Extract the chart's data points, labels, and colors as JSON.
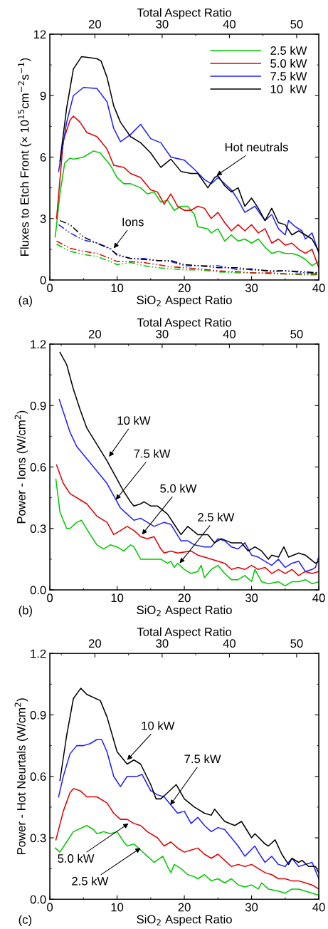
{
  "chart_data": [
    {
      "type": "line",
      "xlabel": "SiO$_{2}$ Aspect Ratio",
      "ylabel": "Fluxes to Etch Front (× 10$^{15}$cm$^{−2}$s$^{−1}$)",
      "x2label": "Total Aspect Ratio",
      "xlim": [
        0,
        40
      ],
      "xticks": [
        0,
        10,
        20,
        30,
        40
      ],
      "ylim": [
        0,
        12
      ],
      "yticks": [
        0,
        3,
        6,
        9,
        12
      ],
      "x2lim": [
        13.3,
        53.3
      ],
      "x2ticks": [
        20,
        30,
        40,
        50
      ],
      "legend": "top right",
      "grid": false,
      "annotations": [
        "(a)",
        {
          "text": "Hot neutrals",
          "x": 24.8,
          "y": 5.1
        },
        {
          "text": "Ions",
          "x": 9.5,
          "y": 1.55
        }
      ],
      "series": [
        {
          "name": "2.5 kW",
          "color": "#00c800",
          "line_style": "solid",
          "x": [
            0.8,
            1.5,
            2.2,
            3,
            3.5,
            5,
            6.5,
            7.5,
            9,
            10,
            11,
            12,
            13.5,
            14.5,
            15.5,
            16.5,
            17.5,
            18.5,
            19.5,
            20.5,
            21.5,
            22,
            23.5,
            24,
            25,
            26,
            27,
            28,
            29,
            30,
            31,
            32,
            33,
            34,
            35,
            36,
            37,
            38,
            39,
            40
          ],
          "values": [
            2.1,
            4.2,
            5.7,
            5.95,
            5.9,
            6.0,
            6.3,
            6.2,
            5.6,
            5.0,
            4.7,
            4.7,
            4.5,
            4.2,
            4.3,
            3.8,
            3.9,
            3.4,
            3.6,
            3.6,
            3.2,
            2.6,
            2.5,
            2.3,
            2.5,
            1.9,
            2.2,
            1.9,
            2.0,
            1.8,
            2.0,
            1.6,
            1.3,
            1.4,
            1.3,
            1.3,
            1.2,
            1.0,
            0.7,
            0.9
          ]
        },
        {
          "name": "5.0 kW",
          "color": "#e00000",
          "line_style": "solid",
          "x": [
            1,
            2,
            3,
            3.5,
            4.5,
            5.5,
            7,
            8.5,
            9.5,
            11,
            12,
            13.5,
            15,
            16,
            17,
            18,
            19,
            20,
            21,
            22,
            23,
            24,
            25,
            26,
            27,
            28,
            29,
            30,
            31,
            32,
            33,
            34,
            35,
            36,
            37,
            38,
            39,
            40
          ],
          "values": [
            3.0,
            6.8,
            7.8,
            8.0,
            7.7,
            7.2,
            7.0,
            6.4,
            5.6,
            5.5,
            5.2,
            5.0,
            4.4,
            4.3,
            3.7,
            4.2,
            3.6,
            3.4,
            3.4,
            3.6,
            3.5,
            3.0,
            3.3,
            2.8,
            2.4,
            2.7,
            2.4,
            2.7,
            2.3,
            2.5,
            1.8,
            2.0,
            1.7,
            1.8,
            1.5,
            1.3,
            1.5,
            0.6
          ]
        },
        {
          "name": "7.5 kW",
          "color": "#1f1fff",
          "line_style": "solid",
          "x": [
            1.3,
            2.5,
            3.5,
            5,
            7,
            8.5,
            9.5,
            10.5,
            12,
            13.5,
            15,
            16.5,
            18,
            20,
            21.5,
            23,
            24,
            25,
            27,
            28,
            29,
            30.5,
            32,
            33,
            34,
            35,
            35.5,
            36.5,
            37.5,
            38,
            39,
            40
          ],
          "values": [
            5.3,
            7.7,
            9.0,
            9.4,
            9.35,
            8.7,
            7.4,
            6.75,
            7.1,
            7.6,
            6.9,
            6.7,
            6.0,
            5.85,
            5.4,
            4.9,
            4.7,
            5.0,
            4.4,
            3.9,
            3.3,
            3.6,
            2.9,
            3.2,
            2.5,
            2.2,
            2.9,
            2.6,
            2.4,
            2.0,
            2.3,
            1.3
          ]
        },
        {
          "name": "10  kW",
          "color": "#000000",
          "line_style": "solid",
          "x": [
            1.5,
            2.5,
            3.5,
            4.7,
            6,
            7,
            7.6,
            8.5,
            9.5,
            10.5,
            12,
            13.5,
            15,
            16.5,
            18,
            19.5,
            21,
            22,
            23.5,
            24.5,
            25,
            26,
            27,
            28,
            29,
            30,
            31,
            32,
            33,
            34,
            35,
            36,
            37,
            38,
            39,
            40
          ],
          "values": [
            5.8,
            8.4,
            10.3,
            10.9,
            10.85,
            10.8,
            10.7,
            9.9,
            8.5,
            7.7,
            7.0,
            6.7,
            6.2,
            5.5,
            5.9,
            5.3,
            5.2,
            5.2,
            4.5,
            5.0,
            5.1,
            4.6,
            4.3,
            4.5,
            3.6,
            4.0,
            3.5,
            2.9,
            3.5,
            2.8,
            2.7,
            2.2,
            2.4,
            2.2,
            2.0,
            1.4
          ]
        },
        {
          "color": "#00c800",
          "line_style": "dashdot",
          "x": [
            1,
            3,
            5,
            7,
            9,
            10,
            12,
            14,
            16,
            18,
            20,
            22,
            25,
            28,
            30,
            33,
            35,
            38,
            40
          ],
          "values": [
            1.75,
            1.4,
            1.25,
            1.15,
            0.9,
            0.75,
            0.85,
            0.7,
            0.6,
            0.55,
            0.5,
            0.5,
            0.4,
            0.35,
            0.35,
            0.3,
            0.3,
            0.25,
            0.25
          ]
        },
        {
          "color": "#e00000",
          "line_style": "dashdot",
          "x": [
            1,
            3,
            5,
            7,
            9,
            10,
            12,
            14,
            16,
            18,
            20,
            22,
            25,
            28,
            30,
            33,
            35,
            38,
            40
          ],
          "values": [
            1.9,
            1.55,
            1.4,
            1.3,
            1.05,
            0.9,
            0.9,
            0.85,
            0.75,
            0.65,
            0.6,
            0.55,
            0.45,
            0.4,
            0.35,
            0.35,
            0.3,
            0.3,
            0.3
          ]
        },
        {
          "color": "#1f1fff",
          "line_style": "dashdot",
          "x": [
            1.3,
            3,
            5,
            7,
            9,
            10,
            12,
            14,
            16,
            18,
            20,
            22,
            25,
            28,
            30,
            33,
            35,
            38,
            40
          ],
          "values": [
            2.7,
            2.3,
            1.95,
            1.8,
            1.55,
            1.2,
            1.05,
            1.05,
            0.95,
            0.9,
            0.7,
            0.7,
            0.7,
            0.5,
            0.55,
            0.4,
            0.45,
            0.35,
            0.35
          ]
        },
        {
          "color": "#000000",
          "line_style": "dashdot",
          "x": [
            1.5,
            3,
            5,
            7,
            9,
            10,
            12,
            14,
            16,
            18,
            20,
            22,
            25,
            28,
            30,
            33,
            35,
            38,
            40
          ],
          "values": [
            2.9,
            2.7,
            2.1,
            1.8,
            1.5,
            1.25,
            1.05,
            1.0,
            0.95,
            0.95,
            0.75,
            0.7,
            0.6,
            0.6,
            0.5,
            0.45,
            0.45,
            0.4,
            0.35
          ]
        }
      ]
    },
    {
      "type": "line",
      "xlabel": "SiO$_{2}$ Aspect Ratio",
      "ylabel": "Power - Ions (W/cm$^{2}$)",
      "x2label": "Total Aspect Ratio",
      "xlim": [
        0,
        40
      ],
      "xticks": [
        0,
        10,
        20,
        30,
        40
      ],
      "ylim": [
        0,
        1.2
      ],
      "yticks": [
        {
          "value": 0,
          "label": "0.0"
        },
        0.3,
        0.6,
        0.9,
        1.2
      ],
      "x2lim": [
        13.3,
        53.3
      ],
      "x2ticks": [
        20,
        30,
        40,
        50
      ],
      "grid": false,
      "annotations": [
        "(b)",
        {
          "text": "10 kW",
          "x": 8.8,
          "y": 0.65
        },
        {
          "text": "7.5 kW",
          "x": 9.8,
          "y": 0.44
        },
        {
          "text": "5.0 kW",
          "x": 13.7,
          "y": 0.27
        },
        {
          "text": "2.5 kW",
          "x": 19.3,
          "y": 0.13
        }
      ],
      "series": [
        {
          "color": "#00c800",
          "x": [
            0.9,
            1.5,
            2.5,
            3,
            4,
            4.7,
            6,
            7,
            8,
            9,
            10,
            11,
            12,
            12.5,
            13.5,
            15,
            16.5,
            17.5,
            18,
            18.5,
            19,
            20,
            21,
            22,
            22.5,
            23,
            24,
            25,
            26,
            27,
            28,
            29,
            30,
            30.5,
            31.5,
            32.5,
            34,
            35,
            36,
            37,
            38,
            39,
            40
          ],
          "values": [
            0.54,
            0.38,
            0.3,
            0.3,
            0.33,
            0.34,
            0.27,
            0.22,
            0.2,
            0.22,
            0.21,
            0.19,
            0.22,
            0.21,
            0.15,
            0.15,
            0.15,
            0.13,
            0.14,
            0.11,
            0.13,
            0.1,
            0.08,
            0.09,
            0.12,
            0.06,
            0.1,
            0.12,
            0.08,
            0.05,
            0.05,
            0.07,
            0.04,
            0.1,
            0.04,
            0.03,
            0.04,
            0.02,
            0.04,
            0.04,
            0.05,
            0.03,
            0.04
          ]
        },
        {
          "color": "#e00000",
          "x": [
            1,
            2,
            3,
            4.5,
            5.5,
            7,
            8.5,
            9.5,
            10,
            11.5,
            12.5,
            13.5,
            14.5,
            15.5,
            16.5,
            17,
            18,
            19,
            21,
            22,
            23,
            25,
            26,
            27,
            28,
            29,
            30,
            31,
            32,
            33,
            34,
            35,
            36,
            37,
            38,
            39,
            40
          ],
          "values": [
            0.61,
            0.52,
            0.47,
            0.44,
            0.42,
            0.36,
            0.33,
            0.27,
            0.28,
            0.31,
            0.29,
            0.26,
            0.25,
            0.26,
            0.2,
            0.18,
            0.19,
            0.18,
            0.19,
            0.17,
            0.16,
            0.14,
            0.13,
            0.1,
            0.11,
            0.1,
            0.12,
            0.1,
            0.11,
            0.08,
            0.1,
            0.08,
            0.1,
            0.07,
            0.09,
            0.08,
            0.09
          ]
        },
        {
          "color": "#1f1fff",
          "x": [
            1.4,
            2,
            3,
            4,
            5.5,
            7,
            8.5,
            9.5,
            10.5,
            11.5,
            12.5,
            13.5,
            14.5,
            15.5,
            17,
            18,
            19.5,
            20.5,
            21.5,
            23,
            24,
            25,
            26,
            27,
            28,
            29,
            30,
            31,
            32,
            33,
            34,
            35,
            36,
            37,
            38,
            39,
            39.5,
            40
          ],
          "values": [
            0.93,
            0.87,
            0.77,
            0.7,
            0.64,
            0.58,
            0.52,
            0.46,
            0.4,
            0.37,
            0.34,
            0.35,
            0.33,
            0.31,
            0.33,
            0.32,
            0.24,
            0.24,
            0.22,
            0.21,
            0.21,
            0.25,
            0.24,
            0.21,
            0.2,
            0.23,
            0.17,
            0.16,
            0.14,
            0.12,
            0.15,
            0.11,
            0.13,
            0.14,
            0.09,
            0.1,
            0.11,
            0.16
          ]
        },
        {
          "color": "#000000",
          "x": [
            1.5,
            2.5,
            3.5,
            4.5,
            5.5,
            7,
            8.5,
            9.5,
            11,
            12,
            12.5,
            13.5,
            14,
            15,
            16,
            17.5,
            18.5,
            19.5,
            20.5,
            22,
            23.5,
            24.5,
            25.5,
            27,
            28.5,
            29.5,
            30.5,
            31.5,
            32.5,
            33,
            34,
            34.8,
            35.5,
            37,
            38,
            39.5,
            40
          ],
          "values": [
            1.16,
            1.1,
            0.98,
            0.88,
            0.79,
            0.71,
            0.63,
            0.57,
            0.48,
            0.43,
            0.41,
            0.42,
            0.43,
            0.41,
            0.41,
            0.37,
            0.32,
            0.27,
            0.31,
            0.27,
            0.27,
            0.23,
            0.25,
            0.23,
            0.23,
            0.19,
            0.21,
            0.19,
            0.15,
            0.17,
            0.16,
            0.21,
            0.16,
            0.18,
            0.17,
            0.13,
            0.14
          ]
        }
      ]
    },
    {
      "type": "line",
      "xlabel": "SiO$_{2}$ Aspect Ratio",
      "ylabel": "Power - Hot Neurtals (W/cm$^{2}$)",
      "x2label": "Total Aspect Ratio",
      "xlim": [
        0,
        40
      ],
      "xticks": [
        0,
        10,
        20,
        30,
        40
      ],
      "ylim": [
        0,
        1.2
      ],
      "yticks": [
        {
          "value": 0,
          "label": "0.0"
        },
        0.3,
        0.6,
        0.9,
        1.2
      ],
      "x2lim": [
        13.3,
        53.3
      ],
      "x2ticks": [
        20,
        30,
        40,
        50
      ],
      "grid": false,
      "annotations": [
        "(c)",
        {
          "text": "10 kW",
          "x": 11.5,
          "y": 0.68
        },
        {
          "text": "7.5 kW",
          "x": 17.9,
          "y": 0.46
        },
        {
          "text": "5.0 kW",
          "x": 11.7,
          "y": 0.37
        },
        {
          "text": "2.5 kW",
          "x": 13.5,
          "y": 0.25
        }
      ],
      "series": [
        {
          "color": "#00c800",
          "x": [
            0.8,
            1.5,
            2.5,
            3.5,
            5.5,
            6.5,
            7,
            8,
            9,
            10,
            11,
            11.5,
            12.5,
            13.5,
            14.5,
            15.5,
            16.8,
            17.5,
            18,
            18.5,
            19.5,
            20.5,
            21.5,
            22,
            23,
            24,
            25,
            26,
            27,
            28,
            29,
            30,
            31,
            31.5,
            32.5,
            34,
            35,
            36,
            37,
            38,
            39,
            40
          ],
          "values": [
            0.25,
            0.23,
            0.28,
            0.33,
            0.36,
            0.34,
            0.32,
            0.33,
            0.32,
            0.33,
            0.28,
            0.26,
            0.27,
            0.24,
            0.21,
            0.18,
            0.21,
            0.16,
            0.13,
            0.17,
            0.15,
            0.12,
            0.11,
            0.1,
            0.12,
            0.09,
            0.1,
            0.08,
            0.1,
            0.07,
            0.06,
            0.07,
            0.05,
            0.08,
            0.05,
            0.04,
            0.03,
            0.05,
            0.05,
            0.04,
            0.03,
            0.02
          ]
        },
        {
          "color": "#e00000",
          "x": [
            0.9,
            2,
            3,
            3.5,
            4.5,
            5.5,
            7,
            8.5,
            9.5,
            10.5,
            11.5,
            12.5,
            13.5,
            14.5,
            16,
            17,
            18,
            19,
            20,
            21,
            22,
            23,
            24,
            25,
            26,
            27,
            28,
            29,
            30,
            31,
            32,
            33,
            34,
            35,
            36,
            37,
            38,
            39,
            40
          ],
          "values": [
            0.29,
            0.43,
            0.52,
            0.54,
            0.53,
            0.5,
            0.5,
            0.47,
            0.42,
            0.39,
            0.39,
            0.37,
            0.36,
            0.33,
            0.3,
            0.26,
            0.28,
            0.25,
            0.23,
            0.24,
            0.25,
            0.22,
            0.2,
            0.22,
            0.19,
            0.16,
            0.17,
            0.16,
            0.17,
            0.15,
            0.13,
            0.12,
            0.1,
            0.1,
            0.09,
            0.09,
            0.08,
            0.07,
            0.05
          ]
        },
        {
          "color": "#1f1fff",
          "x": [
            1.3,
            2,
            3,
            4,
            5,
            6,
            7,
            7.7,
            8.5,
            9.5,
            10.5,
            11.5,
            13,
            13.7,
            15,
            16,
            17,
            18,
            19,
            20,
            21,
            22,
            23,
            24,
            25,
            26,
            27,
            28,
            29,
            30.5,
            31,
            32,
            33,
            34,
            35,
            36,
            37,
            38,
            39,
            40
          ],
          "values": [
            0.5,
            0.6,
            0.71,
            0.75,
            0.75,
            0.76,
            0.78,
            0.78,
            0.72,
            0.6,
            0.55,
            0.6,
            0.6,
            0.61,
            0.53,
            0.51,
            0.5,
            0.46,
            0.42,
            0.43,
            0.37,
            0.4,
            0.36,
            0.33,
            0.35,
            0.34,
            0.3,
            0.26,
            0.21,
            0.26,
            0.23,
            0.18,
            0.21,
            0.17,
            0.16,
            0.2,
            0.16,
            0.17,
            0.18,
            0.1
          ]
        },
        {
          "color": "#000000",
          "x": [
            1.5,
            2.5,
            3.5,
            4.6,
            5.5,
            7.5,
            8.5,
            10,
            11.5,
            12.5,
            13.5,
            15,
            15.8,
            16.5,
            17.5,
            18.8,
            20,
            21.5,
            23,
            24,
            24.5,
            26,
            27.5,
            28.5,
            30,
            30.5,
            32,
            32.5,
            33.5,
            34.5,
            35.5,
            36,
            37,
            37.5,
            38.5,
            39.5,
            40
          ],
          "values": [
            0.58,
            0.8,
            0.98,
            1.03,
            1.0,
            0.97,
            0.89,
            0.72,
            0.66,
            0.68,
            0.66,
            0.56,
            0.49,
            0.49,
            0.52,
            0.56,
            0.49,
            0.45,
            0.42,
            0.41,
            0.44,
            0.38,
            0.36,
            0.38,
            0.3,
            0.32,
            0.27,
            0.26,
            0.29,
            0.22,
            0.17,
            0.2,
            0.18,
            0.19,
            0.16,
            0.16,
            0.13
          ]
        }
      ]
    }
  ]
}
